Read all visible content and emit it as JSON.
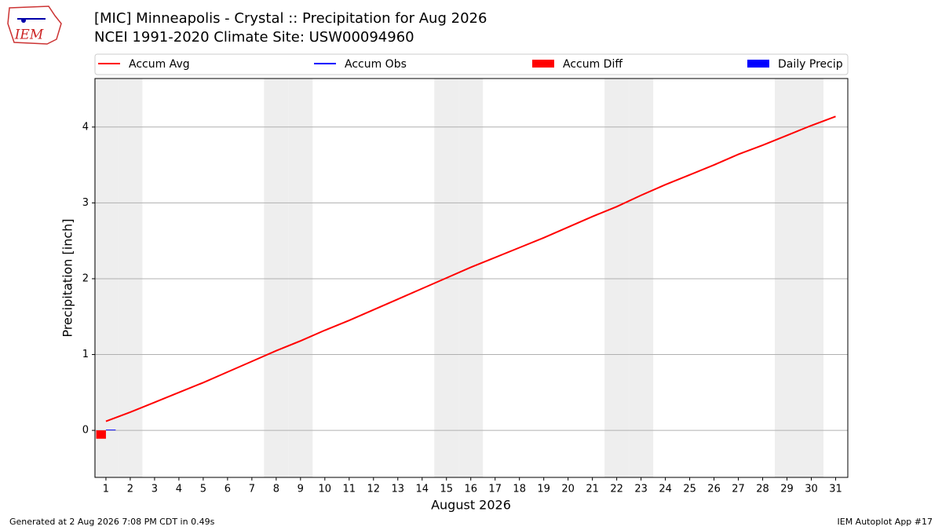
{
  "chart_data": {
    "type": "line",
    "title": "[MIC] Minneapolis - Crystal :: Precipitation for Aug 2026",
    "subtitle": "NCEI 1991-2020 Climate Site: USW00094960",
    "logo_text": "IEM",
    "xlabel": "August 2026",
    "ylabel": "Precipitation [inch]",
    "footer_left": "Generated at 2 Aug 2026 7:08 PM CDT in 0.49s",
    "footer_right": "IEM Autoplot App #17",
    "x": [
      1,
      2,
      3,
      4,
      5,
      6,
      7,
      8,
      9,
      10,
      11,
      12,
      13,
      14,
      15,
      16,
      17,
      18,
      19,
      20,
      21,
      22,
      23,
      24,
      25,
      26,
      27,
      28,
      29,
      30,
      31
    ],
    "series": [
      {
        "name": "Accum Avg",
        "color": "#ff0000",
        "kind": "line",
        "values": [
          0.12,
          0.24,
          0.37,
          0.5,
          0.63,
          0.77,
          0.91,
          1.05,
          1.18,
          1.32,
          1.45,
          1.59,
          1.73,
          1.87,
          2.01,
          2.15,
          2.28,
          2.41,
          2.54,
          2.68,
          2.82,
          2.95,
          3.1,
          3.24,
          3.37,
          3.5,
          3.64,
          3.76,
          3.89,
          4.02,
          4.14
        ]
      },
      {
        "name": "Accum Obs",
        "color": "#0000ff",
        "kind": "line",
        "values": [
          0.01,
          null,
          null,
          null,
          null,
          null,
          null,
          null,
          null,
          null,
          null,
          null,
          null,
          null,
          null,
          null,
          null,
          null,
          null,
          null,
          null,
          null,
          null,
          null,
          null,
          null,
          null,
          null,
          null,
          null,
          null
        ]
      },
      {
        "name": "Accum Diff",
        "color": "#ff0000",
        "kind": "bar",
        "values": [
          -0.11,
          null,
          null,
          null,
          null,
          null,
          null,
          null,
          null,
          null,
          null,
          null,
          null,
          null,
          null,
          null,
          null,
          null,
          null,
          null,
          null,
          null,
          null,
          null,
          null,
          null,
          null,
          null,
          null,
          null,
          null
        ]
      },
      {
        "name": "Daily Precip",
        "color": "#0000ff",
        "kind": "bar",
        "values": [
          0.01,
          null,
          null,
          null,
          null,
          null,
          null,
          null,
          null,
          null,
          null,
          null,
          null,
          null,
          null,
          null,
          null,
          null,
          null,
          null,
          null,
          null,
          null,
          null,
          null,
          null,
          null,
          null,
          null,
          null,
          null
        ]
      }
    ],
    "weekend_days": [
      1,
      2,
      8,
      9,
      15,
      16,
      22,
      23,
      29,
      30
    ],
    "xlim": [
      0.55,
      31.5
    ],
    "ylim": [
      -0.62,
      4.64
    ],
    "xticks": [
      1,
      2,
      3,
      4,
      5,
      6,
      7,
      8,
      9,
      10,
      11,
      12,
      13,
      14,
      15,
      16,
      17,
      18,
      19,
      20,
      21,
      22,
      23,
      24,
      25,
      26,
      27,
      28,
      29,
      30,
      31
    ],
    "yticks": [
      0,
      1,
      2,
      3,
      4
    ],
    "grid": true,
    "legend": "top"
  }
}
